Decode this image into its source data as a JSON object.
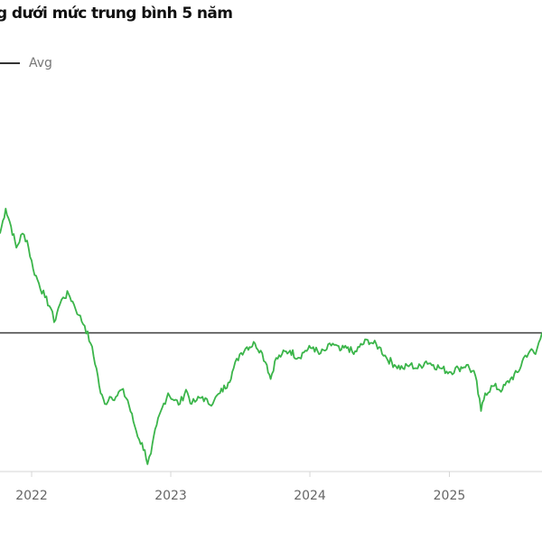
{
  "title": "g dưới mức trung bình 5 năm",
  "colors": {
    "series": "#3bb54a",
    "average": "#3a3a3a",
    "axis": "#d6d6d6",
    "tick_text": "#666666"
  },
  "chart_data": {
    "type": "line",
    "title": "g dưới mức trung bình 5 năm",
    "xlabel": "",
    "ylabel": "",
    "grid": false,
    "legend_placement": "top-left",
    "legend": [
      {
        "label": "Avg",
        "color": "#3a3a3a"
      }
    ],
    "x_ticks": [
      "2022",
      "2023",
      "2024",
      "2025"
    ],
    "xlim": [
      "2021-10-10",
      "2025-09-01"
    ],
    "ylim": [
      0,
      100
    ],
    "average": {
      "name": "Avg",
      "value": 50
    },
    "series": [
      {
        "color": "#3bb54a",
        "points": [
          [
            "2021-10-10",
            78
          ],
          [
            "2021-10-25",
            85
          ],
          [
            "2021-11-08",
            80
          ],
          [
            "2021-11-22",
            74
          ],
          [
            "2021-12-08",
            78
          ],
          [
            "2021-12-20",
            76
          ],
          [
            "2022-01-05",
            68
          ],
          [
            "2022-01-20",
            64
          ],
          [
            "2022-02-05",
            60
          ],
          [
            "2022-02-20",
            57
          ],
          [
            "2022-03-01",
            53
          ],
          [
            "2022-03-12",
            57
          ],
          [
            "2022-03-25",
            60
          ],
          [
            "2022-04-08",
            61
          ],
          [
            "2022-04-22",
            58
          ],
          [
            "2022-05-05",
            55
          ],
          [
            "2022-05-20",
            52
          ],
          [
            "2022-06-05",
            47
          ],
          [
            "2022-06-20",
            40
          ],
          [
            "2022-07-01",
            33
          ],
          [
            "2022-07-12",
            30
          ],
          [
            "2022-07-25",
            32
          ],
          [
            "2022-08-10",
            32
          ],
          [
            "2022-08-25",
            34
          ],
          [
            "2022-09-10",
            31
          ],
          [
            "2022-09-25",
            25
          ],
          [
            "2022-10-10",
            20
          ],
          [
            "2022-10-25",
            17
          ],
          [
            "2022-11-01",
            13
          ],
          [
            "2022-11-10",
            16
          ],
          [
            "2022-11-25",
            24
          ],
          [
            "2022-12-10",
            29
          ],
          [
            "2022-12-25",
            33
          ],
          [
            "2023-01-10",
            31
          ],
          [
            "2023-01-25",
            30
          ],
          [
            "2023-02-10",
            34
          ],
          [
            "2023-02-25",
            30
          ],
          [
            "2023-03-10",
            31
          ],
          [
            "2023-03-25",
            32
          ],
          [
            "2023-04-10",
            30
          ],
          [
            "2023-04-25",
            31
          ],
          [
            "2023-05-10",
            33
          ],
          [
            "2023-06-01",
            36
          ],
          [
            "2023-06-15",
            40
          ],
          [
            "2023-07-01",
            44
          ],
          [
            "2023-07-20",
            46
          ],
          [
            "2023-08-10",
            47
          ],
          [
            "2023-08-25",
            45
          ],
          [
            "2023-09-10",
            41
          ],
          [
            "2023-09-20",
            37
          ],
          [
            "2023-10-01",
            42
          ],
          [
            "2023-10-20",
            44
          ],
          [
            "2023-11-10",
            45
          ],
          [
            "2023-12-01",
            43
          ],
          [
            "2023-12-20",
            45
          ],
          [
            "2024-01-10",
            46
          ],
          [
            "2024-01-25",
            44
          ],
          [
            "2024-02-10",
            45
          ],
          [
            "2024-03-01",
            47
          ],
          [
            "2024-03-20",
            45
          ],
          [
            "2024-04-10",
            46
          ],
          [
            "2024-04-25",
            44
          ],
          [
            "2024-05-10",
            46
          ],
          [
            "2024-06-01",
            48
          ],
          [
            "2024-06-15",
            47
          ],
          [
            "2024-07-01",
            46
          ],
          [
            "2024-07-20",
            43
          ],
          [
            "2024-08-10",
            41
          ],
          [
            "2024-09-01",
            40
          ],
          [
            "2024-09-20",
            41
          ],
          [
            "2024-10-10",
            40
          ],
          [
            "2024-11-01",
            42
          ],
          [
            "2024-11-20",
            41
          ],
          [
            "2024-12-10",
            40
          ],
          [
            "2025-01-01",
            39
          ],
          [
            "2025-01-25",
            40
          ],
          [
            "2025-02-15",
            41
          ],
          [
            "2025-03-10",
            38
          ],
          [
            "2025-03-25",
            28
          ],
          [
            "2025-04-05",
            33
          ],
          [
            "2025-04-25",
            35
          ],
          [
            "2025-05-20",
            34
          ],
          [
            "2025-06-10",
            37
          ],
          [
            "2025-07-01",
            39
          ],
          [
            "2025-07-15",
            43
          ],
          [
            "2025-08-01",
            45
          ],
          [
            "2025-08-15",
            44
          ],
          [
            "2025-09-01",
            50
          ]
        ]
      }
    ]
  }
}
